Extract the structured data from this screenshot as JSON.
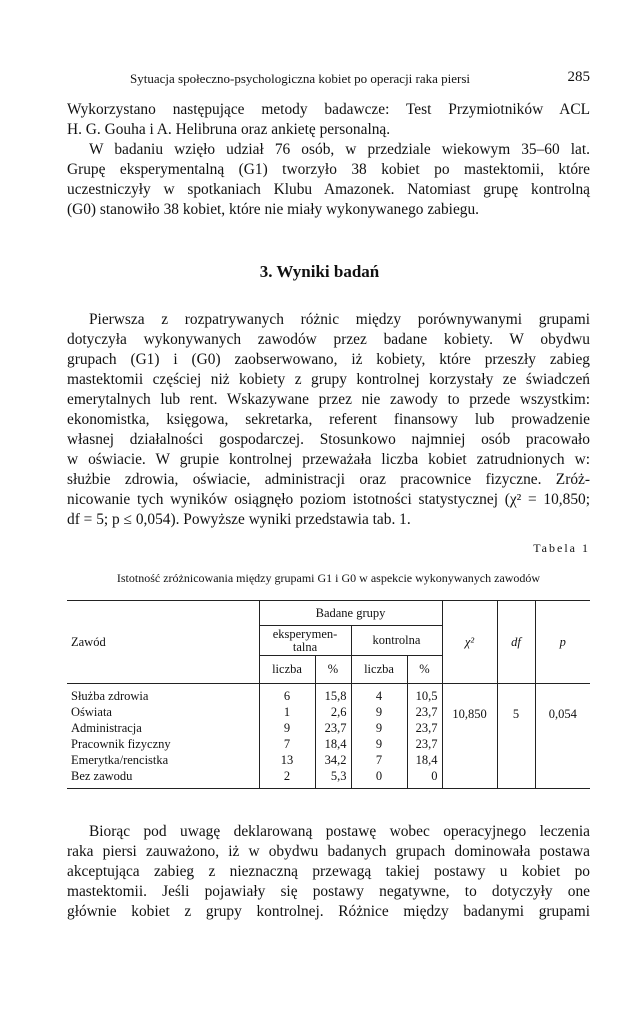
{
  "header": {
    "running_title": "Sytuacja społeczno-psychologiczna kobiet po operacji raka piersi",
    "page_number": "285"
  },
  "intro": {
    "lines": [
      "Wykorzystano następujące metody badawcze: Test Przymiotników ACL",
      "H. G. Gouha i A. Helibruna oraz ankietę personalną.",
      "W badaniu wzięło udział 76 osób, w przedziale wiekowym 35–60 lat.",
      "Grupę eksperymentalną (G1) tworzyło 38 kobiet po mastektomii, które",
      "uczestniczyły w spotkaniach Klubu Amazonek. Natomiast grupę kontrolną",
      "(G0) stanowiło 38 kobiet, które nie miały wykonywanego zabiegu."
    ]
  },
  "section_heading": "3. Wyniki badań",
  "results": {
    "lines": [
      "Pierwsza z rozpatrywanych różnic między porównywanymi grupami",
      "dotyczyła wykonywanych zawodów przez badane kobiety. W obydwu",
      "grupach (G1) i (G0) zaobserwowano, iż kobiety, które przeszły zabieg",
      "mastektomii częściej niż kobiety z grupy kontrolnej korzystały ze świadczeń",
      "emerytalnych lub rent. Wskazywane przez nie zawody to przede wszystkim:",
      "ekonomistka, księgowa, sekretarka, referent finansowy lub prowadzenie",
      "własnej działalności gospodarczej. Stosunkowo najmniej osób pracowało",
      "w oświacie. W grupie kontrolnej przeważała liczba kobiet zatrudnionych w:",
      "służbie zdrowia, oświacie, administracji oraz pracownice fizyczne. Zróż-",
      "nicowanie tych wyników osiągnęło poziom istotności statystycznej (χ² = 10,850;",
      "df = 5; p ≤ 0,054). Powyższe wyniki przedstawia tab. 1."
    ]
  },
  "table": {
    "label": "Tabela 1",
    "caption": "Istotność zróżnicowania między grupami G1 i G0 w aspekcie wykonywanych zawodów",
    "headers": {
      "occupation": "Zawód",
      "groups": "Badane grupy",
      "experimental": "eksperymen-talna",
      "control": "kontrolna",
      "count": "liczba",
      "percent": "%",
      "chi2": "χ²",
      "df": "df",
      "p": "p"
    },
    "rows": [
      {
        "name": "Służba zdrowia",
        "e_n": "6",
        "e_pct": "15,8",
        "c_n": "4",
        "c_pct": "10,5"
      },
      {
        "name": "Oświata",
        "e_n": "1",
        "e_pct": "2,6",
        "c_n": "9",
        "c_pct": "23,7"
      },
      {
        "name": "Administracja",
        "e_n": "9",
        "e_pct": "23,7",
        "c_n": "9",
        "c_pct": "23,7"
      },
      {
        "name": "Pracownik fizyczny",
        "e_n": "7",
        "e_pct": "18,4",
        "c_n": "9",
        "c_pct": "23,7"
      },
      {
        "name": "Emerytka/rencistka",
        "e_n": "13",
        "e_pct": "34,2",
        "c_n": "7",
        "c_pct": "18,4"
      },
      {
        "name": "Bez zawodu",
        "e_n": "2",
        "e_pct": "5,3",
        "c_n": "0",
        "c_pct": "0"
      }
    ],
    "stats": {
      "chi2": "10,850",
      "df": "5",
      "p": "0,054"
    }
  },
  "closing": {
    "lines": [
      "Biorąc pod uwagę deklarowaną postawę wobec operacyjnego leczenia",
      "raka piersi zauważono, iż w obydwu badanych grupach dominowała postawa",
      "akceptująca zabieg z nieznaczną przewagą takiej postawy u kobiet po",
      "mastektomii. Jeśli pojawiały się postawy negatywne, to dotyczyły one",
      "głównie kobiet z grupy kontrolnej. Różnice między badanymi grupami"
    ]
  }
}
